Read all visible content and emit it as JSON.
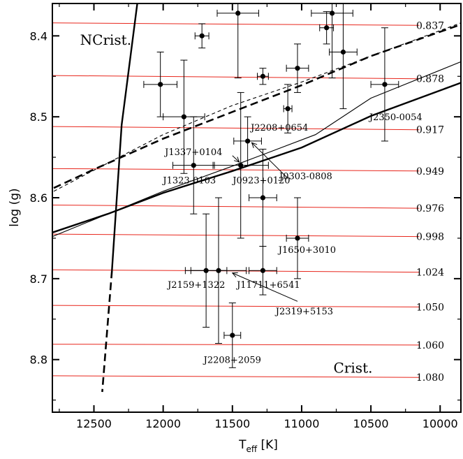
{
  "chart_data": {
    "type": "scatter",
    "xlabel": "T",
    "xlabel_sub": "eff",
    "xlabel_unit": " [K]",
    "ylabel": "log (g)",
    "xlim": [
      12800,
      9850
    ],
    "ylim": [
      8.36,
      8.865
    ],
    "x_ticks": [
      12500,
      12000,
      11500,
      11000,
      10500,
      10000
    ],
    "y_ticks": [
      8.4,
      8.5,
      8.6,
      8.7,
      8.8
    ],
    "grid": false,
    "region_labels": [
      {
        "text": "NCrist.",
        "x": 12600,
        "y": 8.405
      },
      {
        "text": "Crist.",
        "x": 10770,
        "y": 8.81
      }
    ],
    "crystallization_lines": [
      {
        "label": "0.837",
        "x0": 12800,
        "y0": 8.384,
        "x1": 10150,
        "y1": 8.387
      },
      {
        "label": "0.878",
        "x0": 12800,
        "y0": 8.449,
        "x1": 10150,
        "y1": 8.453
      },
      {
        "label": "0.917",
        "x0": 12800,
        "y0": 8.512,
        "x1": 10150,
        "y1": 8.516
      },
      {
        "label": "0.949",
        "x0": 12800,
        "y0": 8.564,
        "x1": 10150,
        "y1": 8.567
      },
      {
        "label": "0.976",
        "x0": 12800,
        "y0": 8.609,
        "x1": 10150,
        "y1": 8.613
      },
      {
        "label": "0.998",
        "x0": 12800,
        "y0": 8.645,
        "x1": 10150,
        "y1": 8.648
      },
      {
        "label": "1.024",
        "x0": 12800,
        "y0": 8.689,
        "x1": 10150,
        "y1": 8.692
      },
      {
        "label": "1.050",
        "x0": 12800,
        "y0": 8.733,
        "x1": 10150,
        "y1": 8.735
      },
      {
        "label": "1.060",
        "x0": 12800,
        "y0": 8.781,
        "x1": 10150,
        "y1": 8.782
      },
      {
        "label": "1.080",
        "x0": 12800,
        "y0": 8.82,
        "x1": 10150,
        "y1": 8.822
      }
    ],
    "curves": [
      {
        "name": "thick-dashed",
        "style": "thick-dashed",
        "points": [
          [
            12790,
            8.588
          ],
          [
            12500,
            8.565
          ],
          [
            12000,
            8.527
          ],
          [
            11500,
            8.494
          ],
          [
            11000,
            8.461
          ],
          [
            10500,
            8.425
          ],
          [
            9850,
            8.386
          ]
        ]
      },
      {
        "name": "thin-dashed",
        "style": "thin-dashed",
        "points": [
          [
            12790,
            8.592
          ],
          [
            12500,
            8.566
          ],
          [
            12000,
            8.522
          ],
          [
            11500,
            8.486
          ],
          [
            11000,
            8.457
          ],
          [
            10500,
            8.425
          ],
          [
            9850,
            8.384
          ]
        ]
      },
      {
        "name": "thin-solid",
        "style": "thin-solid",
        "points": [
          [
            12800,
            8.648
          ],
          [
            12400,
            8.62
          ],
          [
            12000,
            8.592
          ],
          [
            11500,
            8.561
          ],
          [
            10900,
            8.522
          ],
          [
            10500,
            8.477
          ],
          [
            9850,
            8.432
          ]
        ]
      },
      {
        "name": "thick-solid",
        "style": "thick-solid",
        "points": [
          [
            12800,
            8.643
          ],
          [
            12400,
            8.62
          ],
          [
            12000,
            8.594
          ],
          [
            11500,
            8.567
          ],
          [
            11000,
            8.538
          ],
          [
            10500,
            8.499
          ],
          [
            9850,
            8.458
          ]
        ]
      },
      {
        "name": "boundary-solid",
        "style": "thick-solid",
        "points": [
          [
            12187,
            8.36
          ],
          [
            12300,
            8.51
          ],
          [
            12370,
            8.69
          ]
        ]
      },
      {
        "name": "boundary-dashed",
        "style": "thick-dashed",
        "points": [
          [
            12370,
            8.69
          ],
          [
            12440,
            8.84
          ]
        ]
      }
    ],
    "points": [
      {
        "x": 11460,
        "y": 8.372,
        "xerr": 150,
        "yerr_lo": 0.03,
        "yerr_hi": 0.08
      },
      {
        "x": 11720,
        "y": 8.4,
        "xerr": 50,
        "yerr_lo": 0.015,
        "yerr_hi": 0.015
      },
      {
        "x": 12020,
        "y": 8.46,
        "xerr": 120,
        "yerr_lo": 0.04,
        "yerr_hi": 0.04
      },
      {
        "x": 11850,
        "y": 8.5,
        "xerr": 150,
        "yerr_lo": 0.07,
        "yerr_hi": 0.07
      },
      {
        "x": 11780,
        "y": 8.56,
        "xerr": 150,
        "yerr_lo": 0.06,
        "yerr_hi": 0.06
      },
      {
        "x": 11280,
        "y": 8.45,
        "xerr": 40,
        "yerr_lo": 0.01,
        "yerr_hi": 0.01
      },
      {
        "x": 11100,
        "y": 8.49,
        "xerr": 30,
        "yerr_lo": 0.03,
        "yerr_hi": 0.03
      },
      {
        "x": 11030,
        "y": 8.44,
        "xerr": 80,
        "yerr_lo": 0.03,
        "yerr_hi": 0.03
      },
      {
        "x": 10820,
        "y": 8.39,
        "xerr": 50,
        "yerr_lo": 0.02,
        "yerr_hi": 0.02
      },
      {
        "x": 10780,
        "y": 8.372,
        "xerr": 150,
        "yerr_lo": 0.03,
        "yerr_hi": 0.08
      },
      {
        "x": 10700,
        "y": 8.42,
        "xerr": 100,
        "yerr_lo": 0.07,
        "yerr_hi": 0.07
      },
      {
        "x": 10400,
        "y": 8.46,
        "xerr": 100,
        "yerr_lo": 0.07,
        "yerr_hi": 0.07
      },
      {
        "x": 11390,
        "y": 8.53,
        "xerr": 100,
        "yerr_lo": 0.03,
        "yerr_hi": 0.03
      },
      {
        "x": 11440,
        "y": 8.56,
        "xerr": 200,
        "yerr_lo": 0.09,
        "yerr_hi": 0.09
      },
      {
        "x": 11280,
        "y": 8.6,
        "xerr": 100,
        "yerr_lo": 0.06,
        "yerr_hi": 0.06
      },
      {
        "x": 11030,
        "y": 8.65,
        "xerr": 80,
        "yerr_lo": 0.05,
        "yerr_hi": 0.05
      },
      {
        "x": 11280,
        "y": 8.69,
        "xerr": 100,
        "yerr_lo": 0.03,
        "yerr_hi": 0.03
      },
      {
        "x": 11690,
        "y": 8.69,
        "xerr": 150,
        "yerr_lo": 0.07,
        "yerr_hi": 0.07
      },
      {
        "x": 11600,
        "y": 8.69,
        "xerr": 200,
        "yerr_lo": 0.09,
        "yerr_hi": 0.09
      },
      {
        "x": 11500,
        "y": 8.77,
        "xerr": 60,
        "yerr_lo": 0.04,
        "yerr_hi": 0.04
      }
    ],
    "annotations": [
      {
        "text": "J2350-0054",
        "x": 10320,
        "y": 8.5,
        "anchor": "middle"
      },
      {
        "text": "J2208+0654",
        "x": 11160,
        "y": 8.513,
        "anchor": "middle"
      },
      {
        "text": "J1337+0104",
        "x": 11780,
        "y": 8.543,
        "anchor": "middle"
      },
      {
        "text": "J0303-0808",
        "x": 10970,
        "y": 8.573,
        "anchor": "middle"
      },
      {
        "text": "J1323-0103",
        "x": 11810,
        "y": 8.578,
        "anchor": "middle"
      },
      {
        "text": "J0923+0120",
        "x": 11290,
        "y": 8.578,
        "anchor": "middle"
      },
      {
        "text": "J1650+3010",
        "x": 10960,
        "y": 8.664,
        "anchor": "middle"
      },
      {
        "text": "J2159+1322",
        "x": 11760,
        "y": 8.707,
        "anchor": "middle"
      },
      {
        "text": "J11711+6541",
        "x": 11240,
        "y": 8.707,
        "anchor": "middle"
      },
      {
        "text": "J2319+5153",
        "x": 10980,
        "y": 8.74,
        "anchor": "middle"
      },
      {
        "text": "J2208+2059",
        "x": 11500,
        "y": 8.8,
        "anchor": "middle"
      }
    ],
    "arrows": [
      {
        "from": [
          11100,
          8.576
        ],
        "to": [
          11360,
          8.532
        ]
      },
      {
        "from": [
          11500,
          8.548
        ],
        "to": [
          11450,
          8.556
        ]
      },
      {
        "from": [
          11030,
          8.728
        ],
        "to": [
          11500,
          8.693
        ]
      }
    ]
  }
}
